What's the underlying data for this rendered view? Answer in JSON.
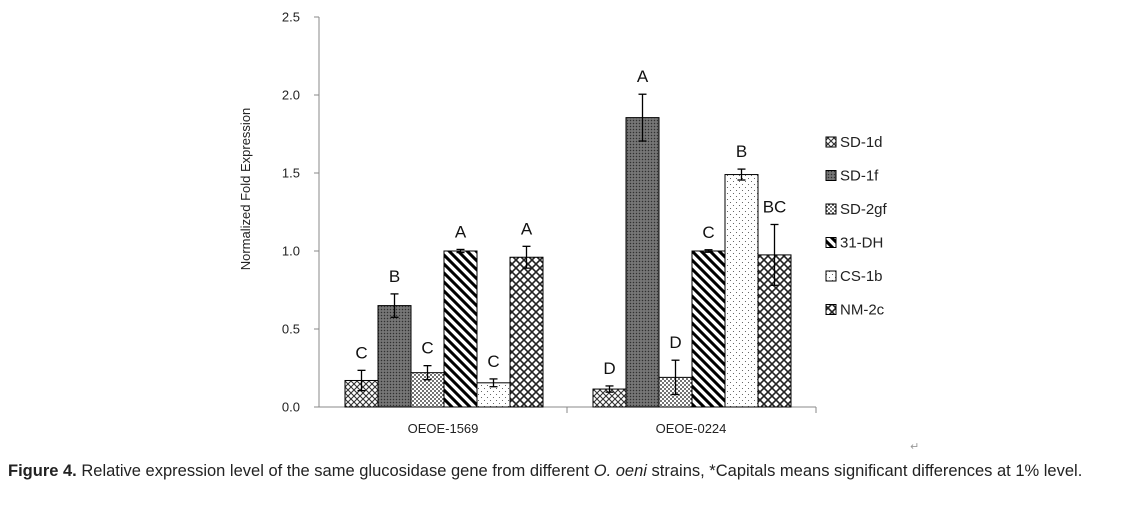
{
  "chart_data": {
    "type": "bar",
    "title": "",
    "xlabel": "",
    "ylabel": "Normalized Fold Expression",
    "ylim": [
      0,
      2.5
    ],
    "yticks": [
      "0.0",
      "0.5",
      "1.0",
      "1.5",
      "2.0",
      "2.5"
    ],
    "categories": [
      "OEOE-1569",
      "OEOE-0224"
    ],
    "grid": false,
    "legend_position": "right",
    "series": [
      {
        "name": "SD-1d",
        "pattern": "diagonal-cross-hatch",
        "values": [
          0.17,
          0.115
        ],
        "errors": [
          0.065,
          0.02
        ],
        "letters": [
          "C",
          "D"
        ]
      },
      {
        "name": "SD-1f",
        "pattern": "dark-dotted-gray",
        "values": [
          0.65,
          1.855
        ],
        "errors": [
          0.075,
          0.15
        ],
        "letters": [
          "B",
          "A"
        ]
      },
      {
        "name": "SD-2gf",
        "pattern": "dense-dots",
        "values": [
          0.22,
          0.19
        ],
        "errors": [
          0.045,
          0.11
        ],
        "letters": [
          "C",
          "D"
        ]
      },
      {
        "name": "31-DH",
        "pattern": "wide-diagonal-stripes",
        "values": [
          1.0,
          1.0
        ],
        "errors": [
          0.01,
          0.008
        ],
        "letters": [
          "A",
          "C"
        ]
      },
      {
        "name": "CS-1b",
        "pattern": "sparse-dots",
        "values": [
          0.155,
          1.49
        ],
        "errors": [
          0.025,
          0.035
        ],
        "letters": [
          "C",
          "B"
        ]
      },
      {
        "name": "NM-2c",
        "pattern": "grid-cross-hatch",
        "values": [
          0.96,
          0.975
        ],
        "errors": [
          0.07,
          0.195
        ],
        "letters": [
          "A",
          "BC"
        ]
      }
    ]
  },
  "caption": {
    "label": "Figure 4.",
    "text_before": " Relative expression level of the same glucosidase gene from different ",
    "species": "O. oeni",
    "text_after": " strains, *Capitals means significant differences at 1% level."
  },
  "return_mark": "↵"
}
